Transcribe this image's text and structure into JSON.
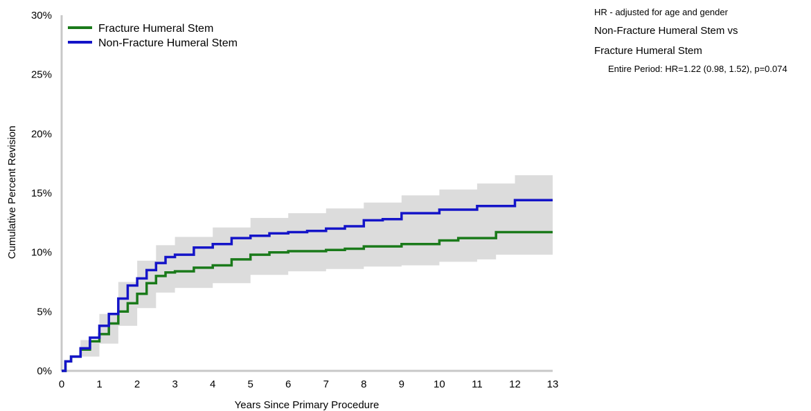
{
  "hr_panel": {
    "title": "HR - adjusted for age and gender",
    "comparison_line1": "Non-Fracture Humeral Stem vs",
    "comparison_line2": "Fracture Humeral Stem",
    "period": "Entire Period: HR=1.22 (0.98, 1.52), p=0.074"
  },
  "chart_data": {
    "type": "line",
    "title": "",
    "xlabel": "Years Since Primary Procedure",
    "ylabel": "Cumulative Percent Revision",
    "xlim": [
      0,
      13
    ],
    "ylim": [
      0,
      30
    ],
    "x_ticks": [
      "0",
      "1",
      "2",
      "3",
      "4",
      "5",
      "6",
      "7",
      "8",
      "9",
      "10",
      "11",
      "12",
      "13"
    ],
    "y_ticks": [
      "0%",
      "5%",
      "10%",
      "15%",
      "20%",
      "25%",
      "30%"
    ],
    "legend_position": "top-left",
    "grid": false,
    "confidence_band_color": "#dcdcdc",
    "series": [
      {
        "name": "Fracture Humeral Stem",
        "color": "#1a7a1a",
        "points": [
          [
            0,
            0
          ],
          [
            0.1,
            0.8
          ],
          [
            0.25,
            1.2
          ],
          [
            0.5,
            1.8
          ],
          [
            0.75,
            2.5
          ],
          [
            1,
            3.1
          ],
          [
            1.25,
            4.0
          ],
          [
            1.5,
            5.0
          ],
          [
            1.75,
            5.7
          ],
          [
            2,
            6.5
          ],
          [
            2.25,
            7.4
          ],
          [
            2.5,
            8.0
          ],
          [
            2.75,
            8.3
          ],
          [
            3,
            8.4
          ],
          [
            3.5,
            8.7
          ],
          [
            4,
            8.9
          ],
          [
            4.5,
            9.4
          ],
          [
            5,
            9.8
          ],
          [
            5.5,
            10.0
          ],
          [
            6,
            10.1
          ],
          [
            6.5,
            10.1
          ],
          [
            7,
            10.2
          ],
          [
            7.5,
            10.3
          ],
          [
            8,
            10.5
          ],
          [
            8.5,
            10.5
          ],
          [
            9,
            10.7
          ],
          [
            9.5,
            10.7
          ],
          [
            10,
            11.0
          ],
          [
            10.5,
            11.2
          ],
          [
            11,
            11.2
          ],
          [
            11.5,
            11.7
          ],
          [
            12,
            11.7
          ],
          [
            13,
            11.7
          ]
        ],
        "ci_lower": [
          [
            0,
            0
          ],
          [
            0.5,
            1.2
          ],
          [
            1,
            2.3
          ],
          [
            1.5,
            3.8
          ],
          [
            2,
            5.3
          ],
          [
            2.5,
            6.6
          ],
          [
            3,
            7.0
          ],
          [
            4,
            7.4
          ],
          [
            5,
            8.1
          ],
          [
            6,
            8.4
          ],
          [
            7,
            8.6
          ],
          [
            8,
            8.8
          ],
          [
            9,
            8.9
          ],
          [
            10,
            9.2
          ],
          [
            11,
            9.4
          ],
          [
            11.5,
            9.8
          ],
          [
            13,
            9.8
          ]
        ]
      },
      {
        "name": "Non-Fracture Humeral Stem",
        "color": "#1414c8",
        "points": [
          [
            0,
            0
          ],
          [
            0.1,
            0.8
          ],
          [
            0.25,
            1.2
          ],
          [
            0.5,
            1.9
          ],
          [
            0.75,
            2.8
          ],
          [
            1,
            3.8
          ],
          [
            1.25,
            4.8
          ],
          [
            1.5,
            6.1
          ],
          [
            1.75,
            7.2
          ],
          [
            2,
            7.8
          ],
          [
            2.25,
            8.5
          ],
          [
            2.5,
            9.1
          ],
          [
            2.75,
            9.6
          ],
          [
            3,
            9.8
          ],
          [
            3.5,
            10.4
          ],
          [
            4,
            10.7
          ],
          [
            4.5,
            11.2
          ],
          [
            5,
            11.4
          ],
          [
            5.5,
            11.6
          ],
          [
            6,
            11.7
          ],
          [
            6.5,
            11.8
          ],
          [
            7,
            12.0
          ],
          [
            7.5,
            12.2
          ],
          [
            8,
            12.7
          ],
          [
            8.5,
            12.8
          ],
          [
            9,
            13.3
          ],
          [
            9.5,
            13.3
          ],
          [
            10,
            13.6
          ],
          [
            10.5,
            13.6
          ],
          [
            11,
            13.9
          ],
          [
            11.5,
            13.9
          ],
          [
            12,
            14.4
          ],
          [
            13,
            14.4
          ]
        ],
        "ci_upper": [
          [
            0,
            0
          ],
          [
            0.5,
            2.6
          ],
          [
            1,
            4.8
          ],
          [
            1.5,
            7.5
          ],
          [
            2,
            9.3
          ],
          [
            2.5,
            10.6
          ],
          [
            3,
            11.3
          ],
          [
            4,
            12.1
          ],
          [
            5,
            12.9
          ],
          [
            6,
            13.3
          ],
          [
            7,
            13.7
          ],
          [
            8,
            14.2
          ],
          [
            9,
            14.8
          ],
          [
            10,
            15.3
          ],
          [
            11,
            15.8
          ],
          [
            12,
            16.5
          ],
          [
            13,
            16.8
          ]
        ]
      }
    ]
  }
}
